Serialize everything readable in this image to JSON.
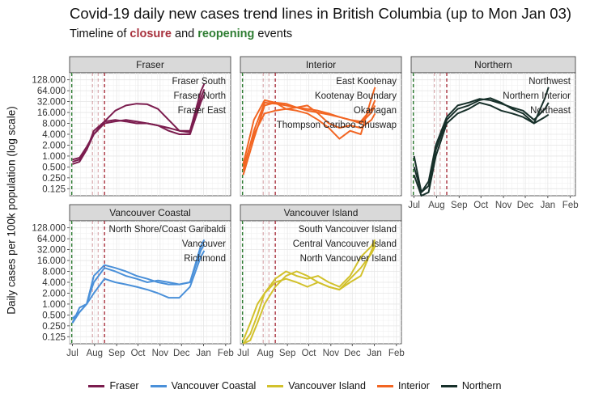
{
  "chart_data": {
    "type": "line",
    "title": "Covid-19 daily new cases trend lines in British Columbia (up to Mon Jan 03)",
    "subtitle": {
      "prefix": "Timeline of ",
      "closure": "closure",
      "middle": " and ",
      "reopening": "reopening",
      "suffix": " events"
    },
    "ylabel": "Daily cases per 100k population (log scale)",
    "y_scale": "log2",
    "ylim": [
      0.08,
      200
    ],
    "y_ticks": [
      128,
      64,
      32,
      16,
      8,
      4,
      2,
      1,
      0.5,
      0.25,
      0.125
    ],
    "y_tick_labels": [
      "128.000",
      "64.000",
      "32.000",
      "16.000",
      "8.000",
      "4.000",
      "2.000",
      "1.000",
      "0.500",
      "0.250",
      "0.125"
    ],
    "x_ticks": [
      0,
      31,
      62,
      92,
      123,
      153,
      184,
      215
    ],
    "x_tick_labels": [
      "Jul",
      "Aug",
      "Sep",
      "Oct",
      "Nov",
      "Dec",
      "Jan",
      "Feb"
    ],
    "xlim": [
      -4,
      222
    ],
    "reopening_events_day": [
      -1
    ],
    "closure_events_day": [
      28,
      36,
      45
    ],
    "colors": {
      "reopening": "#2e7d32",
      "closure": "#a8323e",
      "grid": "#e6e6e6",
      "strip": "#d9d9d9"
    },
    "legend_position": "bottom",
    "legend": [
      {
        "name": "Fraser",
        "color": "#7b1c4e"
      },
      {
        "name": "Vancouver Coastal",
        "color": "#4a90d9"
      },
      {
        "name": "Vancouver Island",
        "color": "#d2c12c"
      },
      {
        "name": "Interior",
        "color": "#f26522"
      },
      {
        "name": "Northern",
        "color": "#17302a"
      }
    ],
    "panels": [
      {
        "name": "Fraser",
        "color": "#7b1c4e",
        "series": [
          {
            "name": "Fraser South",
            "x": [
              0,
              10,
              20,
              30,
              45,
              60,
              75,
              90,
              105,
              120,
              135,
              150,
              165,
              180,
              185
            ],
            "y": [
              0.8,
              0.9,
              1.8,
              4,
              9,
              18,
              25,
              28,
              27,
              20,
              10,
              5,
              5,
              60,
              100
            ]
          },
          {
            "name": "Fraser North",
            "x": [
              0,
              10,
              20,
              30,
              45,
              60,
              75,
              90,
              105,
              120,
              135,
              150,
              165,
              180,
              185
            ],
            "y": [
              0.7,
              0.8,
              1.5,
              4,
              8,
              9,
              10,
              9,
              8,
              7,
              6,
              5,
              4.5,
              40,
              70
            ]
          },
          {
            "name": "Fraser East",
            "x": [
              0,
              10,
              20,
              30,
              45,
              60,
              75,
              90,
              105,
              120,
              135,
              150,
              165,
              180,
              185
            ],
            "y": [
              0.6,
              0.7,
              1.5,
              5,
              9,
              10,
              9,
              8,
              8,
              7,
              5,
              4,
              4,
              30,
              50
            ]
          }
        ]
      },
      {
        "name": "Interior",
        "color": "#f26522",
        "series": [
          {
            "name": "East Kootenay",
            "x": [
              0,
              15,
              30,
              45,
              60,
              75,
              90,
              105,
              120,
              135,
              150,
              165,
              180,
              185
            ],
            "y": [
              0.3,
              3,
              25,
              30,
              20,
              18,
              15,
              10,
              6,
              3,
              5,
              4,
              40,
              80
            ]
          },
          {
            "name": "Kootenay Boundary",
            "x": [
              0,
              15,
              30,
              45,
              60,
              75,
              90,
              105,
              120,
              135,
              150,
              165,
              180,
              185
            ],
            "y": [
              0.4,
              5,
              30,
              28,
              25,
              22,
              20,
              18,
              15,
              12,
              10,
              9,
              20,
              35
            ]
          },
          {
            "name": "Okanagan",
            "x": [
              0,
              15,
              30,
              45,
              60,
              75,
              90,
              105,
              120,
              135,
              150,
              165,
              180,
              185
            ],
            "y": [
              0.6,
              10,
              35,
              30,
              28,
              22,
              18,
              16,
              14,
              12,
              10,
              8,
              16,
              25
            ]
          },
          {
            "name": "Thompson Cariboo Shuswap",
            "x": [
              0,
              15,
              30,
              45,
              60,
              75,
              90,
              105,
              120,
              135,
              150,
              165,
              180,
              185
            ],
            "y": [
              0.5,
              4,
              15,
              18,
              20,
              22,
              25,
              15,
              8,
              6,
              7,
              6,
              10,
              15
            ]
          }
        ]
      },
      {
        "name": "Northern",
        "color": "#17302a",
        "series": [
          {
            "name": "Northwest",
            "x": [
              0,
              10,
              20,
              30,
              45,
              60,
              75,
              90,
              105,
              120,
              135,
              150,
              165,
              180,
              185
            ],
            "y": [
              1,
              0.1,
              0.15,
              1.5,
              10,
              20,
              25,
              35,
              40,
              30,
              20,
              15,
              8,
              40,
              80
            ]
          },
          {
            "name": "Northern Interior",
            "x": [
              0,
              10,
              20,
              30,
              45,
              60,
              75,
              90,
              105,
              120,
              135,
              150,
              165,
              180,
              185
            ],
            "y": [
              0.5,
              0.1,
              0.2,
              2,
              12,
              25,
              30,
              38,
              35,
              28,
              22,
              18,
              10,
              20,
              30
            ]
          },
          {
            "name": "Northeast",
            "x": [
              0,
              10,
              20,
              30,
              45,
              60,
              75,
              90,
              105,
              120,
              135,
              150,
              165,
              180,
              185
            ],
            "y": [
              0.3,
              0.08,
              0.1,
              1,
              8,
              15,
              20,
              30,
              25,
              18,
              15,
              12,
              8,
              12,
              14
            ]
          }
        ]
      },
      {
        "name": "Vancouver Coastal",
        "color": "#4a90d9",
        "series": [
          {
            "name": "North Shore/Coast Garibaldi",
            "x": [
              0,
              10,
              20,
              30,
              45,
              60,
              75,
              90,
              105,
              120,
              135,
              150,
              165,
              180,
              185
            ],
            "y": [
              0.3,
              0.8,
              1,
              4,
              10,
              8,
              6,
              5,
              4,
              4.5,
              4,
              3.5,
              4,
              40,
              60
            ]
          },
          {
            "name": "Vancouver",
            "x": [
              0,
              10,
              20,
              30,
              45,
              60,
              75,
              90,
              105,
              120,
              135,
              150,
              165,
              180,
              185
            ],
            "y": [
              0.4,
              0.6,
              1,
              6,
              12,
              10,
              8,
              6,
              5,
              4,
              3.5,
              3.5,
              4,
              30,
              45
            ]
          },
          {
            "name": "Richmond",
            "x": [
              0,
              10,
              20,
              30,
              45,
              60,
              75,
              90,
              105,
              120,
              135,
              150,
              165,
              180,
              185
            ],
            "y": [
              0.3,
              0.6,
              1,
              2,
              5,
              4,
              3.5,
              3,
              2.5,
              2,
              1.5,
              1.5,
              3,
              20,
              30
            ]
          }
        ]
      },
      {
        "name": "Vancouver Island",
        "color": "#d2c12c",
        "series": [
          {
            "name": "South Vancouver Island",
            "x": [
              0,
              10,
              20,
              30,
              45,
              60,
              75,
              90,
              105,
              120,
              135,
              150,
              165,
              180,
              185
            ],
            "y": [
              0.1,
              0.3,
              1,
              2,
              4,
              5,
              4,
              3,
              4,
              3,
              2.5,
              4,
              6,
              30,
              50
            ]
          },
          {
            "name": "Central Vancouver Island",
            "x": [
              0,
              10,
              20,
              30,
              45,
              60,
              75,
              90,
              105,
              120,
              135,
              150,
              165,
              180,
              185
            ],
            "y": [
              0.08,
              0.15,
              0.5,
              2,
              5,
              8,
              6,
              5,
              6,
              4,
              3,
              6,
              20,
              40,
              60
            ]
          },
          {
            "name": "North Vancouver Island",
            "x": [
              0,
              10,
              20,
              30,
              45,
              60,
              75,
              90,
              105,
              120,
              135,
              150,
              165,
              180,
              185
            ],
            "y": [
              0.08,
              0.1,
              0.3,
              1,
              3,
              6,
              8,
              6,
              4,
              3,
              2.5,
              5,
              10,
              25,
              40
            ]
          }
        ]
      }
    ]
  }
}
